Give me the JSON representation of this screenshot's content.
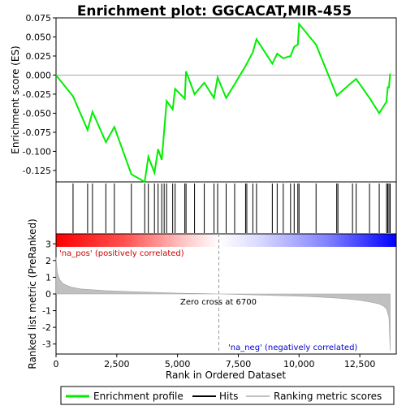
{
  "chart_data": {
    "type": "line",
    "title": "Enrichment plot: GGCACAT,MIR-455",
    "top_panel": {
      "ylabel": "Enrichment score (ES)",
      "ylim": [
        -0.14,
        0.075
      ],
      "yticks": [
        -0.125,
        -0.1,
        -0.075,
        -0.05,
        -0.025,
        0.0,
        0.025,
        0.05,
        0.075
      ],
      "ytick_labels": [
        "-0.125",
        "-0.100",
        "-0.075",
        "-0.050",
        "-0.025",
        "0.000",
        "0.025",
        "0.050",
        "0.075"
      ],
      "series": [
        {
          "name": "Enrichment profile",
          "color": "#00ee00",
          "x": [
            0,
            700,
            1300,
            1500,
            2050,
            2400,
            3100,
            3650,
            3800,
            4050,
            4200,
            4350,
            4450,
            4550,
            4800,
            4900,
            5300,
            5350,
            5700,
            6100,
            6500,
            6650,
            7000,
            7350,
            7800,
            8100,
            8250,
            8900,
            9100,
            9350,
            9650,
            9800,
            9950,
            10000,
            10700,
            11550,
            12200,
            12350,
            12900,
            13300,
            13600,
            13650,
            13700,
            13750
          ],
          "y": [
            0.0,
            -0.028,
            -0.072,
            -0.048,
            -0.088,
            -0.068,
            -0.13,
            -0.14,
            -0.107,
            -0.128,
            -0.097,
            -0.111,
            -0.073,
            -0.034,
            -0.045,
            -0.018,
            -0.031,
            0.005,
            -0.025,
            -0.01,
            -0.03,
            -0.003,
            -0.03,
            -0.012,
            0.012,
            0.03,
            0.047,
            0.015,
            0.028,
            0.022,
            0.025,
            0.037,
            0.04,
            0.067,
            0.04,
            -0.027,
            -0.009,
            -0.005,
            -0.03,
            -0.05,
            -0.035,
            -0.016,
            -0.016,
            0.002
          ]
        }
      ]
    },
    "hits": {
      "name": "Hits",
      "x": [
        700,
        1300,
        1500,
        2050,
        2400,
        3100,
        3650,
        3800,
        4050,
        4200,
        4350,
        4450,
        4550,
        4800,
        4900,
        5300,
        5350,
        5700,
        6100,
        6500,
        6650,
        7000,
        7350,
        7800,
        7850,
        8100,
        8250,
        8900,
        9100,
        9350,
        9650,
        9800,
        9950,
        10000,
        10700,
        11550,
        11600,
        12200,
        12350,
        12900,
        13300,
        13600,
        13650,
        13700,
        13750
      ]
    },
    "bottom_panel": {
      "xlabel": "Rank in Ordered Dataset",
      "ylabel": "Ranked list metric (PreRanked)",
      "xlim": [
        0,
        14000
      ],
      "ylim": [
        -3.6,
        3.6
      ],
      "xticks": [
        0,
        2500,
        5000,
        7500,
        10000,
        12500
      ],
      "xtick_labels": [
        "0",
        "2,500",
        "5,000",
        "7,500",
        "10,000",
        "12,500"
      ],
      "yticks": [
        -3,
        -2,
        -1,
        0,
        1,
        2,
        3
      ],
      "ytick_labels": [
        "-3",
        "-2",
        "-1",
        "0",
        "1",
        "2",
        "3"
      ],
      "series": [
        {
          "name": "Ranking metric scores",
          "color": "#c0c0c0",
          "x": [
            0,
            50,
            150,
            300,
            600,
            1000,
            2000,
            3000,
            4000,
            5000,
            6000,
            6700,
            7500,
            8500,
            9500,
            10500,
            11500,
            12000,
            12500,
            13000,
            13300,
            13500,
            13600,
            13700,
            13750
          ],
          "y": [
            2.2,
            1.3,
            0.85,
            0.6,
            0.42,
            0.3,
            0.2,
            0.14,
            0.09,
            0.05,
            0.02,
            0.0,
            -0.03,
            -0.07,
            -0.11,
            -0.16,
            -0.24,
            -0.3,
            -0.38,
            -0.5,
            -0.6,
            -0.75,
            -0.9,
            -1.4,
            -3.4
          ]
        }
      ],
      "zero_cross_label": "Zero cross at 6700",
      "zero_cross_x": 6700,
      "pos_label": "'na_pos' (positively correlated)",
      "neg_label": "'na_neg' (negatively correlated)"
    },
    "legend": {
      "placement": "bottom",
      "entries": [
        {
          "name": "Enrichment profile",
          "color": "#00ee00"
        },
        {
          "name": "Hits",
          "color": "#000000"
        },
        {
          "name": "Ranking metric scores",
          "color": "#c0c0c0"
        }
      ]
    },
    "colors": {
      "pos_label": "#cc0000",
      "neg_label": "#0000cc",
      "gradient": [
        "#ff0000",
        "#ffb0b0",
        "#ffffff",
        "#b0b0ff",
        "#0000ff"
      ]
    }
  }
}
